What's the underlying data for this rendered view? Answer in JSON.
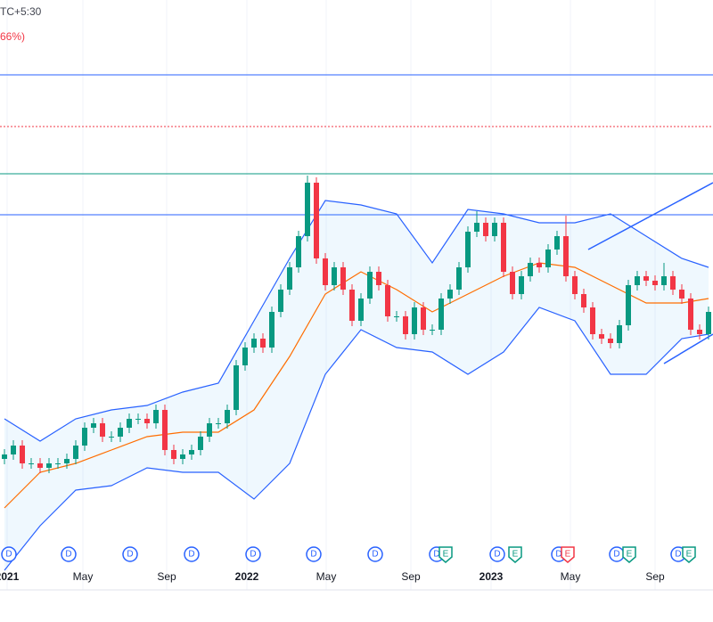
{
  "chart_data": {
    "type": "candlestick",
    "header": "TC+5:30",
    "change": "66%)",
    "x_labels": [
      "2021",
      "May",
      "Sep",
      "2022",
      "May",
      "Sep",
      "2023",
      "May",
      "Sep"
    ],
    "ylim": [
      0,
      635
    ],
    "up_color": "#089981",
    "down_color": "#f23645",
    "ohlc": [
      [
        120,
        131,
        114,
        125
      ],
      [
        125,
        141,
        119,
        135
      ],
      [
        135,
        141,
        109,
        115
      ],
      [
        115,
        121,
        109,
        115
      ],
      [
        115,
        121,
        104,
        110
      ],
      [
        110,
        121,
        104,
        115
      ],
      [
        115,
        121,
        109,
        115
      ],
      [
        115,
        126,
        109,
        120
      ],
      [
        120,
        141,
        114,
        135
      ],
      [
        135,
        161,
        129,
        155
      ],
      [
        155,
        166,
        149,
        160
      ],
      [
        160,
        166,
        139,
        145
      ],
      [
        145,
        151,
        139,
        145
      ],
      [
        145,
        161,
        139,
        155
      ],
      [
        155,
        171,
        149,
        165
      ],
      [
        165,
        171,
        159,
        165
      ],
      [
        165,
        171,
        154,
        160
      ],
      [
        160,
        181,
        154,
        175
      ],
      [
        175,
        181,
        124,
        130
      ],
      [
        130,
        136,
        114,
        120
      ],
      [
        120,
        131,
        114,
        125
      ],
      [
        125,
        136,
        119,
        130
      ],
      [
        130,
        151,
        124,
        145
      ],
      [
        145,
        166,
        139,
        160
      ],
      [
        160,
        166,
        154,
        160
      ],
      [
        160,
        181,
        154,
        175
      ],
      [
        175,
        231,
        169,
        225
      ],
      [
        225,
        251,
        219,
        245
      ],
      [
        245,
        261,
        239,
        255
      ],
      [
        255,
        261,
        239,
        245
      ],
      [
        245,
        291,
        239,
        285
      ],
      [
        285,
        316,
        279,
        310
      ],
      [
        310,
        341,
        304,
        335
      ],
      [
        335,
        376,
        329,
        370
      ],
      [
        370,
        438,
        364,
        430
      ],
      [
        430,
        436,
        339,
        345
      ],
      [
        345,
        351,
        309,
        315
      ],
      [
        315,
        341,
        309,
        335
      ],
      [
        335,
        341,
        304,
        310
      ],
      [
        310,
        316,
        269,
        275
      ],
      [
        275,
        306,
        269,
        300
      ],
      [
        300,
        336,
        294,
        330
      ],
      [
        330,
        336,
        309,
        315
      ],
      [
        315,
        321,
        274,
        280
      ],
      [
        280,
        286,
        274,
        280
      ],
      [
        280,
        286,
        254,
        260
      ],
      [
        260,
        296,
        254,
        290
      ],
      [
        290,
        296,
        259,
        265
      ],
      [
        265,
        271,
        259,
        265
      ],
      [
        265,
        306,
        259,
        300
      ],
      [
        300,
        316,
        294,
        310
      ],
      [
        310,
        341,
        304,
        335
      ],
      [
        335,
        381,
        329,
        375
      ],
      [
        375,
        398,
        369,
        385
      ],
      [
        385,
        391,
        364,
        370
      ],
      [
        370,
        391,
        364,
        385
      ],
      [
        385,
        391,
        324,
        330
      ],
      [
        330,
        336,
        299,
        305
      ],
      [
        305,
        331,
        299,
        325
      ],
      [
        325,
        346,
        319,
        340
      ],
      [
        340,
        346,
        329,
        335
      ],
      [
        335,
        361,
        329,
        355
      ],
      [
        355,
        376,
        349,
        370
      ],
      [
        370,
        393,
        319,
        325
      ],
      [
        325,
        331,
        299,
        305
      ],
      [
        305,
        311,
        284,
        290
      ],
      [
        290,
        296,
        254,
        260
      ],
      [
        260,
        266,
        249,
        255
      ],
      [
        255,
        261,
        244,
        250
      ],
      [
        250,
        276,
        244,
        270
      ],
      [
        270,
        321,
        264,
        315
      ],
      [
        315,
        331,
        309,
        325
      ],
      [
        325,
        331,
        314,
        320
      ],
      [
        320,
        326,
        309,
        315
      ],
      [
        315,
        340,
        309,
        325
      ],
      [
        325,
        331,
        304,
        310
      ],
      [
        310,
        316,
        294,
        300
      ],
      [
        300,
        306,
        259,
        265
      ],
      [
        265,
        271,
        254,
        260
      ],
      [
        260,
        291,
        254,
        285
      ]
    ],
    "band_index": [
      0,
      4,
      8,
      12,
      16,
      20,
      24,
      28,
      32,
      36,
      40,
      44,
      48,
      52,
      56,
      60,
      64,
      68,
      72,
      76,
      79
    ],
    "series": [
      {
        "color": "#2962ff",
        "values": [
          165,
          140,
          165,
          175,
          180,
          195,
          205,
          275,
          345,
          410,
          405,
          395,
          340,
          400,
          395,
          385,
          385,
          395,
          370,
          345,
          335
        ]
      },
      {
        "color": "#ff6d00",
        "values": [
          65,
          105,
          115,
          130,
          145,
          150,
          150,
          175,
          235,
          305,
          330,
          310,
          285,
          305,
          325,
          340,
          335,
          315,
          295,
          295,
          300
        ]
      },
      {
        "color": "#2962ff",
        "values": [
          -5,
          45,
          85,
          90,
          110,
          105,
          105,
          75,
          115,
          215,
          265,
          245,
          240,
          215,
          240,
          290,
          275,
          215,
          215,
          255,
          260
        ]
      }
    ],
    "levels": [
      {
        "value": 551,
        "color": "#2962ff"
      },
      {
        "value": 493,
        "color": "#f23645"
      },
      {
        "value": 440,
        "color": "#089981"
      },
      {
        "value": 394,
        "color": "#2962ff"
      }
    ],
    "events": [
      "D",
      "D",
      "D",
      "D",
      "D",
      "D",
      "D",
      "D",
      "E",
      "D",
      "E",
      "D",
      "E",
      "D",
      "E",
      "D",
      "E"
    ]
  }
}
